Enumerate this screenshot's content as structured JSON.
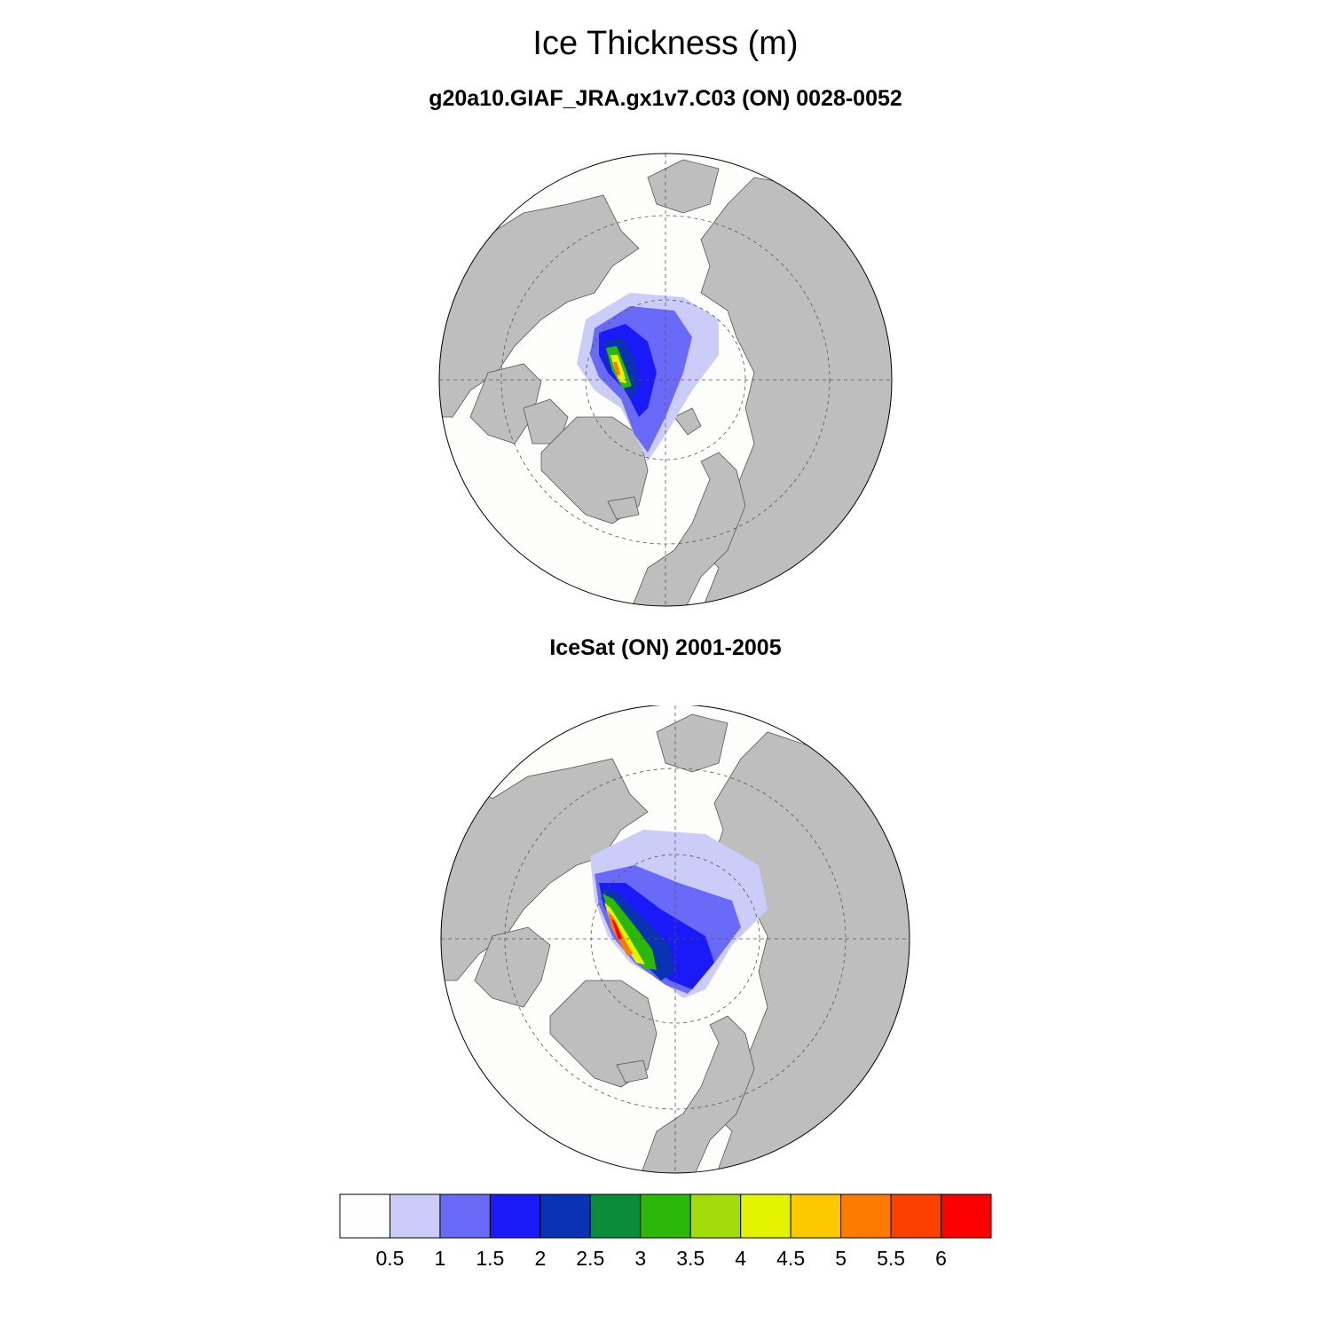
{
  "figure": {
    "title": "Ice Thickness (m)",
    "panels": [
      {
        "title": "g20a10.GIAF_JRA.gx1v7.C03 (ON) 0028-0052"
      },
      {
        "title": "IceSat (ON) 2001-2005"
      }
    ]
  },
  "colors": {
    "land": "#bebebe",
    "ocean": "#fdfdfc",
    "grid": "#555555"
  },
  "colorbar": {
    "labels": [
      "0.5",
      "1",
      "1.5",
      "2",
      "2.5",
      "3",
      "3.5",
      "4",
      "4.5",
      "5",
      "5.5",
      "6"
    ],
    "colors": [
      "#fefefe",
      "#ccccf8",
      "#6a6af8",
      "#1a1af8",
      "#0a32b4",
      "#0a8c3a",
      "#2cb80a",
      "#a2dc0a",
      "#e4f400",
      "#fcc800",
      "#fc7a00",
      "#fc4000",
      "#fc0000"
    ]
  }
}
